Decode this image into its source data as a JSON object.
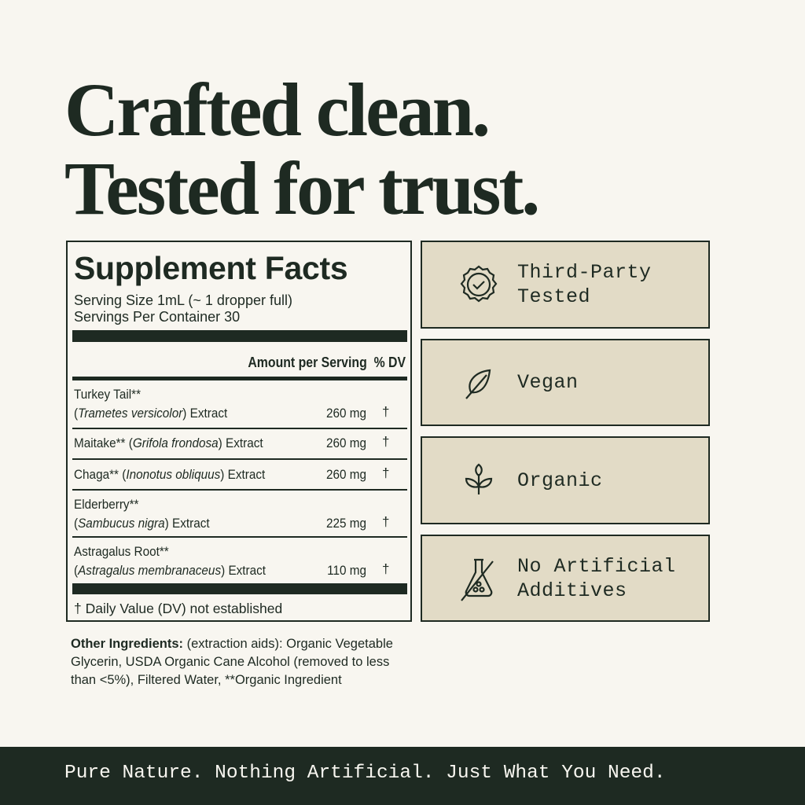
{
  "headline": {
    "line1": "Crafted clean.",
    "line2": "Tested for trust."
  },
  "facts": {
    "title": "Supplement Facts",
    "serving_size": "Serving Size 1mL (~ 1 dropper full)",
    "servings_per_container": "Servings Per Container 30",
    "header_amount": "Amount per Serving",
    "header_dv": "% DV",
    "rows": [
      {
        "name": "Turkey Tail**",
        "latin": "Trametes versicolor",
        "suffix": ") Extract",
        "amount": "260 mg",
        "dv": "†"
      },
      {
        "name": "Maitake** (",
        "latin": "Grifola frondosa",
        "suffix": ") Extract",
        "amount": "260 mg",
        "dv": "†"
      },
      {
        "name": "Chaga** (",
        "latin": "Inonotus obliquus",
        "suffix": ") Extract",
        "amount": "260 mg",
        "dv": "†"
      },
      {
        "name": "Elderberry**",
        "latin": "Sambucus nigra",
        "suffix": ") Extract",
        "amount": "225 mg",
        "dv": "†"
      },
      {
        "name": "Astragalus Root**",
        "latin": "Astragalus membranaceus",
        "suffix": ") Extract",
        "amount": "110 mg",
        "dv": "†"
      }
    ],
    "footnote": "† Daily Value (DV) not established"
  },
  "other_ingredients": {
    "label": "Other Ingredients:",
    "text": " (extraction aids): Organic Vegetable Glycerin, USDA Organic Cane Alcohol (removed to less than <5%), Filtered Water, **Organic Ingredient"
  },
  "badges": [
    {
      "icon": "seal-check-icon",
      "label": "Third-Party\nTested"
    },
    {
      "icon": "leaf-icon",
      "label": "Vegan"
    },
    {
      "icon": "sprout-icon",
      "label": "Organic"
    },
    {
      "icon": "no-flask-icon",
      "label": "No Artificial\nAdditives"
    }
  ],
  "footer": {
    "tagline": "Pure Nature. Nothing Artificial. Just What You Need."
  },
  "colors": {
    "dark_green": "#1e2a22",
    "background": "#f8f6f0",
    "badge_bg": "#e2dbc6"
  }
}
